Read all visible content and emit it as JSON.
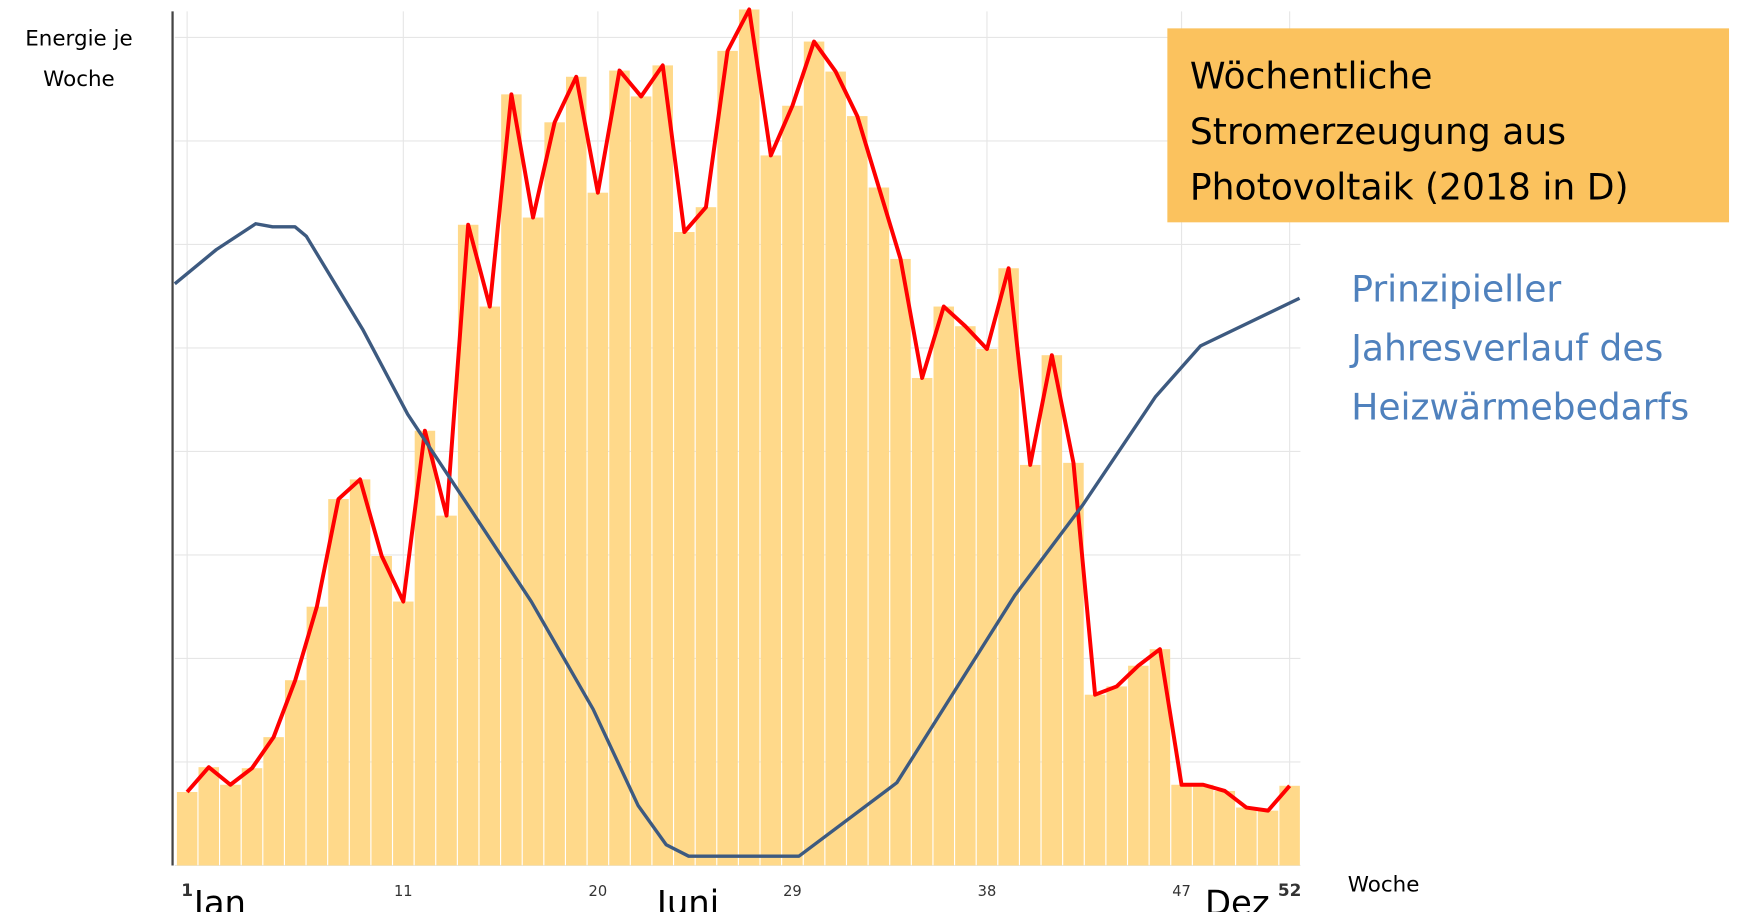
{
  "chart_data": {
    "type": "bar",
    "ylabel": [
      "Energie je",
      "Woche"
    ],
    "xlabel": "Woche",
    "month_labels": [
      "Jan",
      "Juni",
      "Dez"
    ],
    "x": [
      1,
      2,
      3,
      4,
      5,
      6,
      7,
      8,
      9,
      10,
      11,
      12,
      13,
      14,
      15,
      16,
      17,
      18,
      19,
      20,
      21,
      22,
      23,
      24,
      25,
      26,
      27,
      28,
      29,
      30,
      31,
      32,
      33,
      34,
      35,
      36,
      37,
      38,
      39,
      40,
      41,
      42,
      43,
      44,
      45,
      46,
      47,
      48,
      49,
      50,
      51,
      52
    ],
    "xlim": [
      0.43,
      52.5
    ],
    "xticks": [
      1,
      11,
      20,
      29,
      38,
      47,
      52
    ],
    "ylim": [
      0,
      8.3
    ],
    "yticks": [
      0,
      1,
      2,
      3,
      4,
      5,
      6,
      7,
      8
    ],
    "grid": true,
    "series": [
      {
        "color": "#ffd98a",
        "line_color": "#ff0000",
        "values": [
          0.71,
          0.95,
          0.78,
          0.94,
          1.24,
          1.79,
          2.5,
          3.54,
          3.73,
          2.99,
          2.55,
          4.2,
          3.38,
          6.19,
          5.4,
          7.45,
          6.26,
          7.18,
          7.62,
          6.5,
          7.68,
          7.43,
          7.73,
          6.12,
          6.36,
          7.87,
          8.27,
          6.86,
          7.34,
          7.96,
          7.67,
          7.24,
          6.55,
          5.86,
          4.71,
          5.4,
          5.21,
          4.99,
          5.77,
          3.87,
          4.93,
          3.89,
          1.65,
          1.73,
          1.93,
          2.09,
          0.78,
          0.78,
          0.72,
          0.56,
          0.53,
          0.77
        ]
      },
      {
        "type": "line",
        "color": "#3d5a80",
        "x": [
          0.43,
          2.35,
          4.17,
          4.95,
          5.99,
          6.51,
          9.12,
          11.2,
          13.8,
          16.92,
          19.78,
          21.86,
          23.16,
          24.2,
          29.3,
          33.83,
          39.29,
          42.42,
          45.8,
          47.88,
          52.46
        ],
        "values": [
          5.62,
          5.95,
          6.2,
          6.17,
          6.17,
          6.08,
          5.18,
          4.36,
          3.54,
          2.55,
          1.51,
          0.58,
          0.2,
          0.09,
          0.09,
          0.8,
          2.61,
          3.48,
          4.53,
          5.02,
          5.48
        ]
      }
    ],
    "annotations": [
      {
        "lines": [
          "Wöchentliche",
          "Stromerzeugung aus",
          "Photovoltaik (2018 in D)"
        ],
        "background": "#fbc25e",
        "color": "#000000"
      },
      {
        "lines": [
          "Prinzipieller",
          "Jahresverlauf des",
          "Heizwärmebedarfs"
        ],
        "color": "#4f81bd"
      }
    ]
  }
}
